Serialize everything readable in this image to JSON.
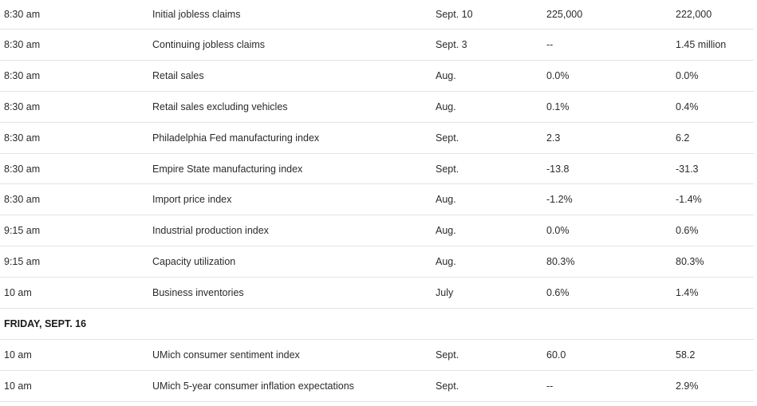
{
  "rows": [
    {
      "time": "8:30 am",
      "event": "Initial jobless claims",
      "period": "Sept. 10",
      "forecast": "225,000",
      "previous": "222,000"
    },
    {
      "time": "8:30 am",
      "event": "Continuing jobless claims",
      "period": "Sept. 3",
      "forecast": "--",
      "previous": "1.45 million"
    },
    {
      "time": "8:30 am",
      "event": "Retail sales",
      "period": "Aug.",
      "forecast": "0.0%",
      "previous": "0.0%"
    },
    {
      "time": "8:30 am",
      "event": "Retail sales excluding vehicles",
      "period": "Aug.",
      "forecast": "0.1%",
      "previous": "0.4%"
    },
    {
      "time": "8:30 am",
      "event": "Philadelphia Fed manufacturing index",
      "period": "Sept.",
      "forecast": "2.3",
      "previous": "6.2"
    },
    {
      "time": "8:30 am",
      "event": "Empire State manufacturing index",
      "period": "Sept.",
      "forecast": "-13.8",
      "previous": "-31.3"
    },
    {
      "time": "8:30 am",
      "event": "Import price index",
      "period": "Aug.",
      "forecast": "-1.2%",
      "previous": "-1.4%"
    },
    {
      "time": "9:15 am",
      "event": "Industrial production index",
      "period": "Aug.",
      "forecast": "0.0%",
      "previous": "0.6%"
    },
    {
      "time": "9:15 am",
      "event": "Capacity utilization",
      "period": "Aug.",
      "forecast": "80.3%",
      "previous": "80.3%"
    },
    {
      "time": "10 am",
      "event": "Business inventories",
      "period": "July",
      "forecast": "0.6%",
      "previous": "1.4%"
    }
  ],
  "section": {
    "label": "FRIDAY, SEPT. 16"
  },
  "rows2": [
    {
      "time": "10 am",
      "event": "UMich consumer sentiment index",
      "period": "Sept.",
      "forecast": "60.0",
      "previous": "58.2"
    },
    {
      "time": "10 am",
      "event": "UMich 5-year consumer inflation expectations",
      "period": "Sept.",
      "forecast": "--",
      "previous": "2.9%"
    }
  ]
}
